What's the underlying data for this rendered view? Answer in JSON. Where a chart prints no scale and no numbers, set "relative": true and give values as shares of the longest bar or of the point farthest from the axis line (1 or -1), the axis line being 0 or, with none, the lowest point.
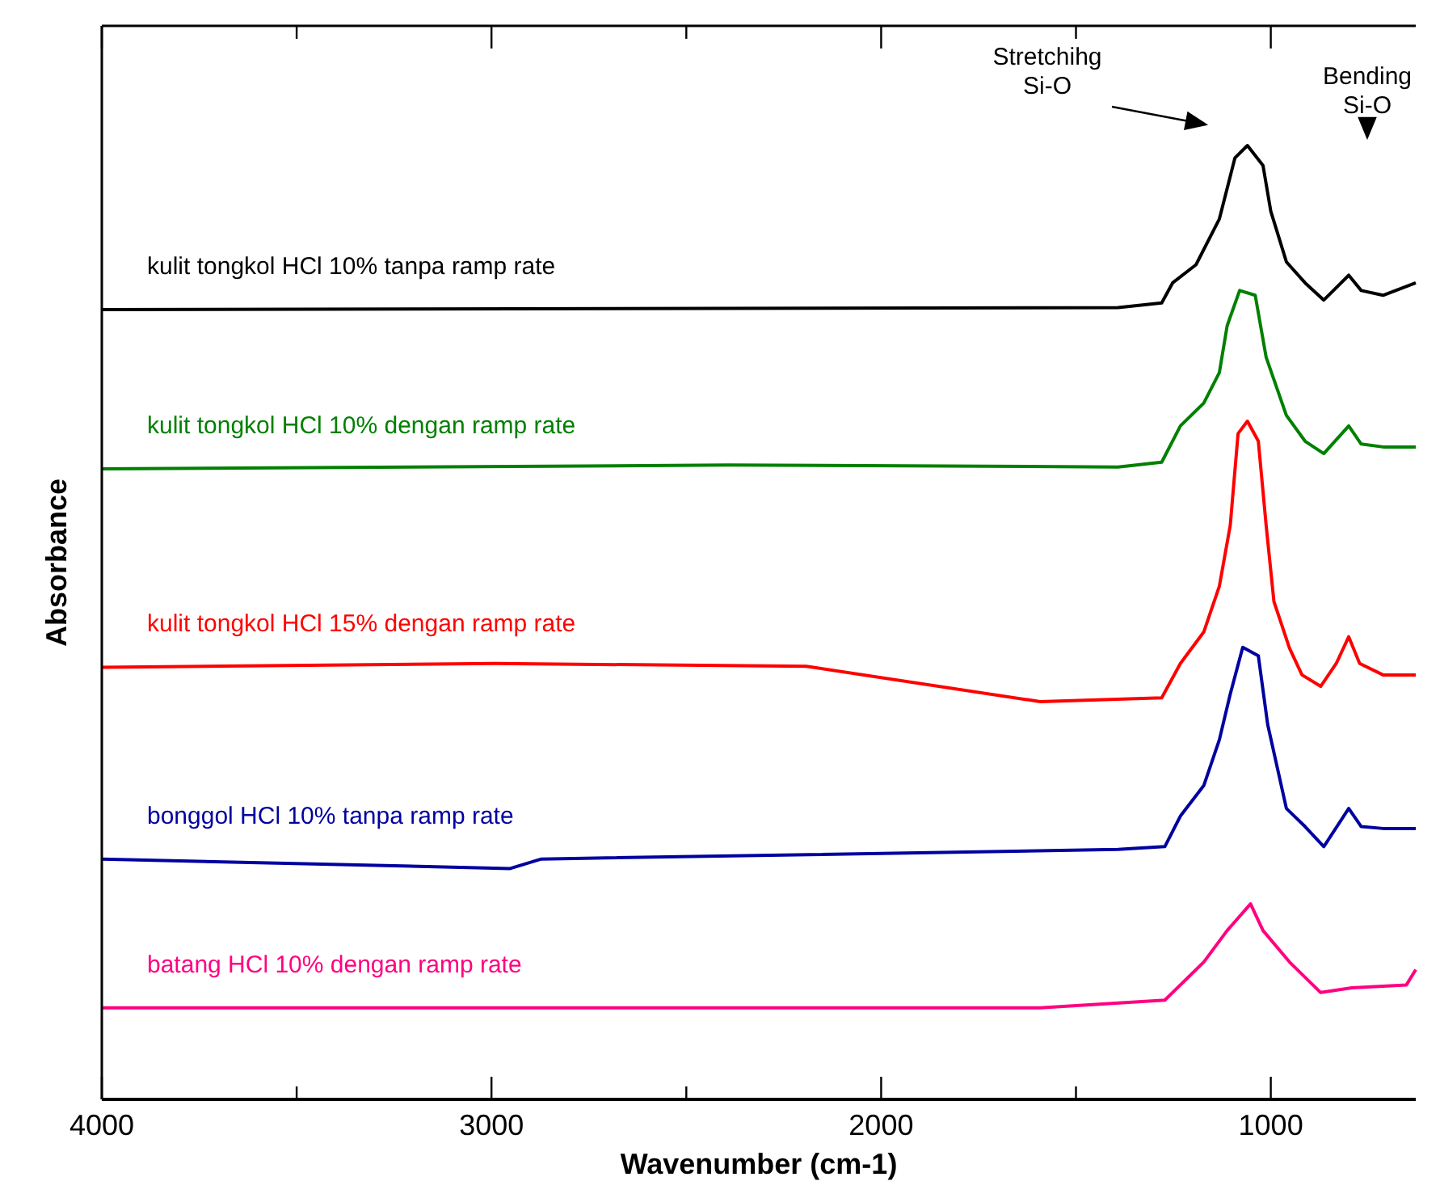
{
  "chart_data": {
    "type": "line",
    "xlabel": "Wavenumber (cm-1)",
    "ylabel": "Absorbance",
    "relative": true,
    "legend": false,
    "grid": false,
    "marker": "none",
    "line_style": "solid",
    "xlim": [
      4000,
      628
    ],
    "xticks": [
      4000,
      {
        "value": 3500,
        "label": null
      },
      3000,
      {
        "value": 2500,
        "label": null
      },
      2000,
      {
        "value": 1500,
        "label": null
      },
      1000
    ],
    "annotations": [
      "Stretchihg\nSi-O",
      "Bending\nSi-O"
    ],
    "series": [
      {
        "name": "kulit tongkol HCl 10% tanpa ramp rate",
        "color": "#000000",
        "x": [
          4000,
          1392,
          1280,
          1252,
          1192,
          1132,
          1092,
          1060,
          1020,
          1000,
          960,
          912,
          864,
          832,
          800,
          768,
          712,
          628
        ],
        "values": [
          0.828,
          0.83,
          0.835,
          0.856,
          0.875,
          0.923,
          0.987,
          1.0,
          0.979,
          0.931,
          0.878,
          0.856,
          0.838,
          0.851,
          0.864,
          0.848,
          0.843,
          0.856
        ]
      },
      {
        "name": "kulit tongkol HCl 10% dengan ramp rate",
        "color": "#008000",
        "x": [
          4000,
          2392,
          1392,
          1280,
          1232,
          1172,
          1132,
          1112,
          1080,
          1040,
          1012,
          960,
          912,
          864,
          800,
          768,
          712,
          628
        ],
        "values": [
          0.661,
          0.665,
          0.663,
          0.668,
          0.706,
          0.73,
          0.762,
          0.811,
          0.848,
          0.843,
          0.778,
          0.717,
          0.69,
          0.677,
          0.706,
          0.687,
          0.684,
          0.684
        ]
      },
      {
        "name": "kulit tongkol HCl 15% dengan ramp rate",
        "color": "#ff0000",
        "x": [
          4000,
          2992,
          2192,
          1592,
          1280,
          1232,
          1172,
          1132,
          1104,
          1084,
          1060,
          1032,
          1012,
          992,
          952,
          920,
          872,
          832,
          800,
          772,
          712,
          628
        ],
        "values": [
          0.453,
          0.457,
          0.454,
          0.417,
          0.421,
          0.457,
          0.49,
          0.538,
          0.602,
          0.698,
          0.711,
          0.69,
          0.602,
          0.522,
          0.473,
          0.445,
          0.433,
          0.457,
          0.485,
          0.457,
          0.445,
          0.445
        ]
      },
      {
        "name": "bonggol HCl 10% tanpa ramp rate",
        "color": "#0000a0",
        "x": [
          4000,
          2952,
          2872,
          1392,
          1272,
          1232,
          1172,
          1132,
          1104,
          1072,
          1032,
          1008,
          960,
          912,
          864,
          800,
          768,
          712,
          628
        ],
        "values": [
          0.252,
          0.242,
          0.252,
          0.262,
          0.265,
          0.297,
          0.329,
          0.377,
          0.425,
          0.474,
          0.465,
          0.393,
          0.305,
          0.286,
          0.265,
          0.305,
          0.286,
          0.284,
          0.284
        ]
      },
      {
        "name": "batang  HCl 10% dengan ramp rate",
        "color": "#ff0080",
        "x": [
          4000,
          1592,
          1272,
          1172,
          1112,
          1052,
          1020,
          952,
          872,
          792,
          652,
          628
        ],
        "values": [
          0.096,
          0.096,
          0.104,
          0.144,
          0.177,
          0.205,
          0.177,
          0.144,
          0.112,
          0.117,
          0.12,
          0.136
        ]
      }
    ]
  }
}
